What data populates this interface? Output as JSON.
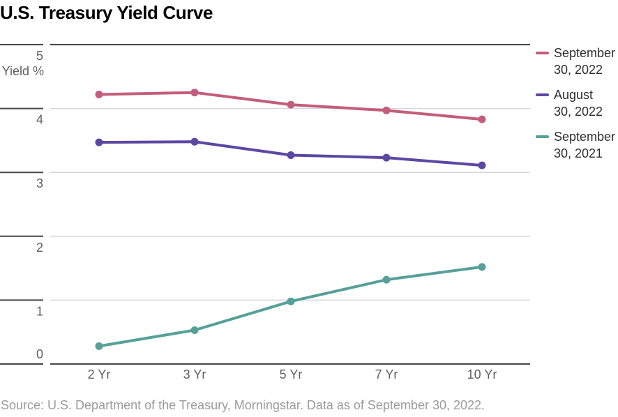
{
  "header": {
    "title": "U.S. Treasury Yield Curve"
  },
  "chart_data": {
    "type": "line",
    "title": "U.S. Treasury Yield Curve",
    "xlabel": "",
    "ylabel": "Yield %",
    "categories": [
      "2 Yr",
      "3 Yr",
      "5 Yr",
      "7 Yr",
      "10 Yr"
    ],
    "series": [
      {
        "name": "September 30, 2022",
        "color": "#c45d7c",
        "values": [
          4.22,
          4.25,
          4.06,
          3.97,
          3.83
        ]
      },
      {
        "name": "August 30, 2022",
        "color": "#5c47a3",
        "values": [
          3.47,
          3.48,
          3.27,
          3.23,
          3.11
        ]
      },
      {
        "name": "September 30, 2021",
        "color": "#57a099",
        "values": [
          0.28,
          0.53,
          0.98,
          1.32,
          1.52
        ]
      }
    ],
    "y_ticks": [
      0,
      1,
      2,
      3,
      4,
      5
    ],
    "ylim": [
      0,
      5
    ],
    "grid": true,
    "legend_position": "right",
    "axis_color": "#474747",
    "grid_color": "#d6d6d6",
    "label_color": "#5f6062",
    "marker": "circle"
  },
  "source": {
    "text": "Source: U.S. Department of the Treasury, Morningstar. Data as of September 30, 2022."
  }
}
